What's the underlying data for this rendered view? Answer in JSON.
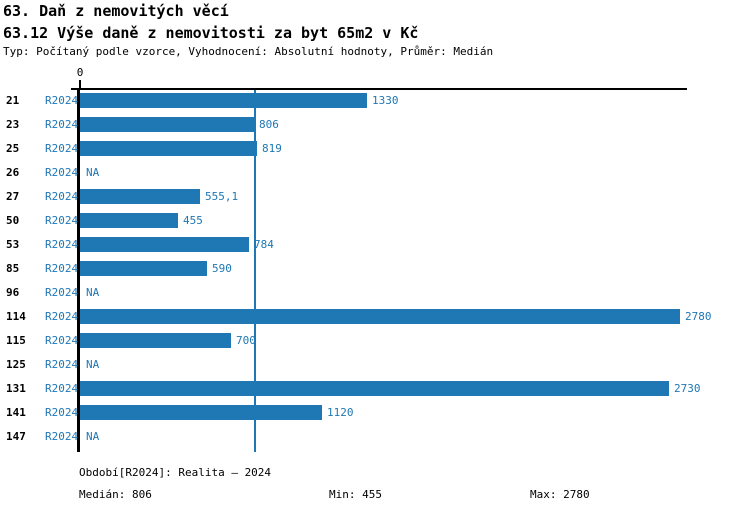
{
  "chart_data": {
    "type": "bar",
    "orientation": "horizontal",
    "title": "63. Daň z nemovitých věcí",
    "subtitle": "63.12 Výše daně z nemovitosti za byt 65m2 v Kč",
    "meta": "Typ: Počítaný podle vzorce, Vyhodnocení: Absolutní hodnoty, Průměr: Medián",
    "series_label": "R2024",
    "categories": [
      "21",
      "23",
      "25",
      "26",
      "27",
      "50",
      "53",
      "85",
      "96",
      "114",
      "115",
      "125",
      "131",
      "141",
      "147"
    ],
    "values": [
      1330,
      806,
      819,
      null,
      555.1,
      455,
      784,
      590,
      null,
      2780,
      700,
      null,
      2730,
      1120,
      null
    ],
    "value_labels": [
      "1330",
      "806",
      "819",
      "NA",
      "555,1",
      "455",
      "784",
      "590",
      "NA",
      "2780",
      "700",
      "NA",
      "2730",
      "1120",
      "NA"
    ],
    "na_label": "NA",
    "x_axis": {
      "zero_label": "0",
      "min": 0,
      "max": 2780
    },
    "median_line_value": 806,
    "stats": {
      "median": 806,
      "min": 455,
      "max": 2780
    },
    "bar_color": "#1f77b4",
    "label_color": "#1f77b4",
    "axis_color": "#000000",
    "grid": false,
    "legend": "none"
  },
  "footer": {
    "period": "Období[R2024]: Realita – 2024",
    "median": "Medián: 806",
    "min": "Min: 455",
    "max": "Max: 2780"
  }
}
